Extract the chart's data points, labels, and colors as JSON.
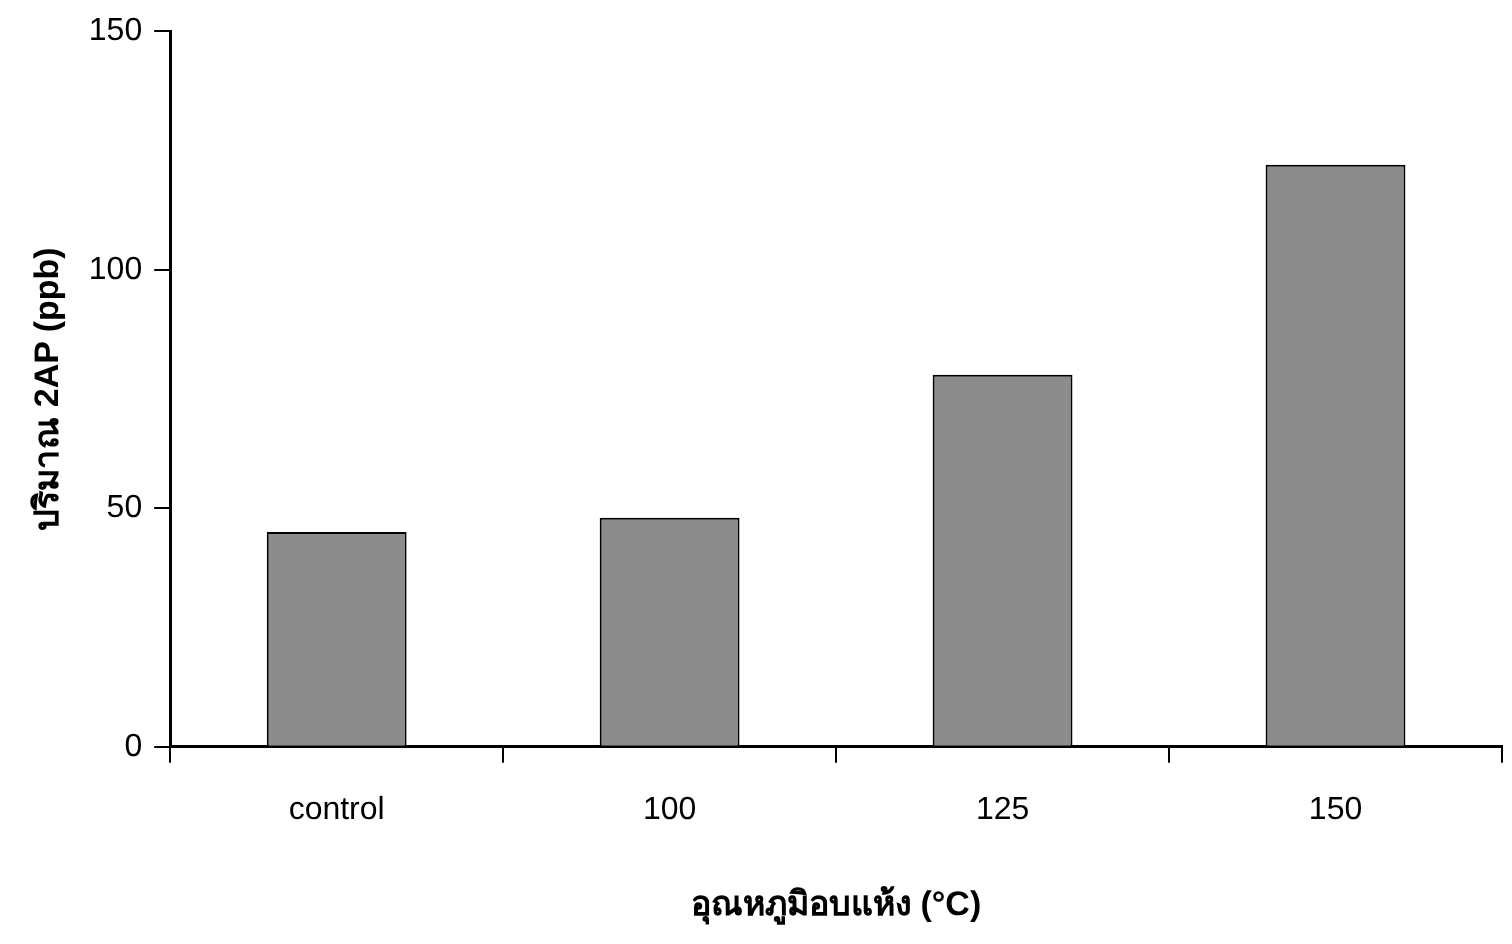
{
  "chart_data": {
    "type": "bar",
    "xlabel": "อุณหภูมิอบแห้ง (°C)",
    "ylabel": "ปริมาณ 2AP (ppb)",
    "categories": [
      "control",
      "100",
      "125",
      "150"
    ],
    "values": [
      45,
      48,
      78,
      122
    ],
    "color": "#8c8c8c",
    "ylim": [
      0,
      150
    ],
    "yticks": [
      0,
      50,
      100,
      150
    ],
    "grid": false,
    "legend": false
  }
}
